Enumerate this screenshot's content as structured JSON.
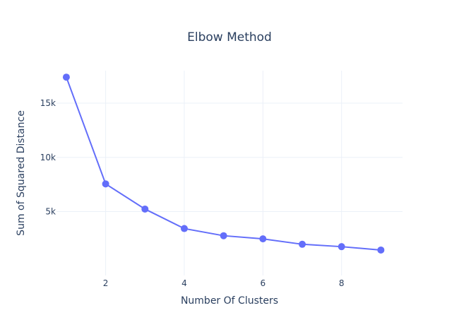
{
  "chart_data": {
    "type": "line",
    "title": "Elbow Method",
    "xlabel": "Number Of Clusters",
    "ylabel": "Sum of Squared Distance",
    "x": [
      1,
      2,
      3,
      4,
      5,
      6,
      7,
      8,
      9
    ],
    "series": [
      {
        "name": "",
        "values": [
          17400,
          7550,
          5230,
          3430,
          2770,
          2480,
          1980,
          1760,
          1450
        ],
        "color": "#636efa"
      }
    ],
    "xlim": [
      0.75,
      9.55
    ],
    "ylim": [
      -900,
      18000
    ],
    "x_ticks": [
      2,
      4,
      6,
      8
    ],
    "x_tick_labels": [
      "2",
      "4",
      "6",
      "8"
    ],
    "y_ticks": [
      5000,
      10000,
      15000
    ],
    "y_tick_labels": [
      "5k",
      "10k",
      "15k"
    ],
    "grid": true,
    "legend": "none",
    "marker": "circle"
  }
}
